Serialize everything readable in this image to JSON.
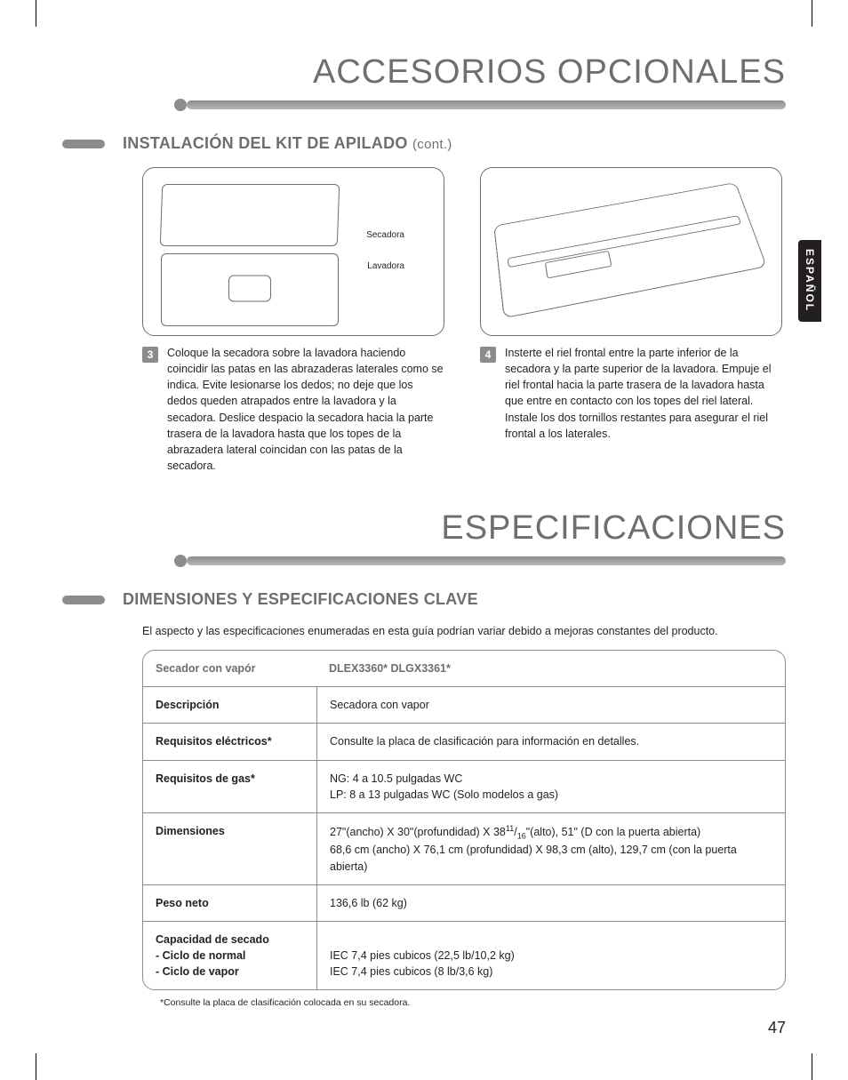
{
  "page_number": "47",
  "language_tab": "ESPAÑOL",
  "titles": {
    "main1": "ACCESORIOS OPCIONALES",
    "main2": "ESPECIFICACIONES"
  },
  "section1": {
    "heading": "INSTALACIÓN DEL KIT DE APILADO",
    "heading_suffix": "(cont.)",
    "fig1": {
      "label_dryer": "Secadora",
      "label_washer": "Lavadora"
    },
    "step3_num": "3",
    "step3_text": "Coloque la secadora sobre la lavadora haciendo coincidir las patas en las abrazaderas laterales como se indica. Evite lesionarse los dedos; no deje que los dedos queden atrapados entre la lavadora y la secadora. Deslice despacio la secadora hacia la parte trasera de la lavadora hasta que los topes de la abrazadera lateral coincidan con las patas de la secadora.",
    "step4_num": "4",
    "step4_text": "Insterte el riel frontal entre la parte inferior de la secadora y la parte superior de la lavadora. Empuje el riel frontal hacia la parte trasera de la lavadora hasta que entre en contacto con los topes del riel lateral. Instale los dos tornillos restantes para asegurar el riel frontal a los laterales."
  },
  "section2": {
    "heading": "DIMENSIONES Y ESPECIFICACIONES CLAVE",
    "intro": "El aspecto y las especificaciones enumeradas en esta guía podrían variar debido a mejoras constantes del producto.",
    "table": {
      "header_left": "Secador con vapór",
      "header_right": "DLEX3360*  DLGX3361*",
      "rows": [
        {
          "label": "Descripción",
          "value": "Secadora con vapor"
        },
        {
          "label": "Requisitos eléctricos*",
          "value": "Consulte la placa de clasificación para información en detalles."
        },
        {
          "label": "Requisitos de gas*",
          "value": "NG: 4 a 10.5 pulgadas WC\nLP: 8 a 13 pulgadas WC (Solo modelos a gas)"
        },
        {
          "label": "Dimensiones",
          "value": "27\"(ancho) X 30\"(profundidad) X 38¹¹⁄₁₆\"(alto), 51\" (D con la puerta abierta)\n68,6 cm (ancho) X 76,1 cm (profundidad) X 98,3 cm (alto), 129,7 cm (con la puerta abierta)"
        },
        {
          "label": "Peso neto",
          "value": "136,6 lb (62 kg)"
        }
      ],
      "capacity": {
        "label_main": "Capacidad de secado",
        "label_sub1": "- Ciclo de normal",
        "label_sub2": "- Ciclo de vapor",
        "value1": "IEC 7,4 pies cubicos (22,5 lb/10,2 kg)",
        "value2": "IEC 7,4 pies cubicos (8 lb/3,6 kg)"
      }
    },
    "footnote": "*Consulte la placa de clasificación colocada en su secadora."
  },
  "colors": {
    "title_gray": "#6d6e71",
    "rule_gray": "#8a8c8e",
    "text": "#231f20",
    "tab_bg": "#231f20"
  }
}
